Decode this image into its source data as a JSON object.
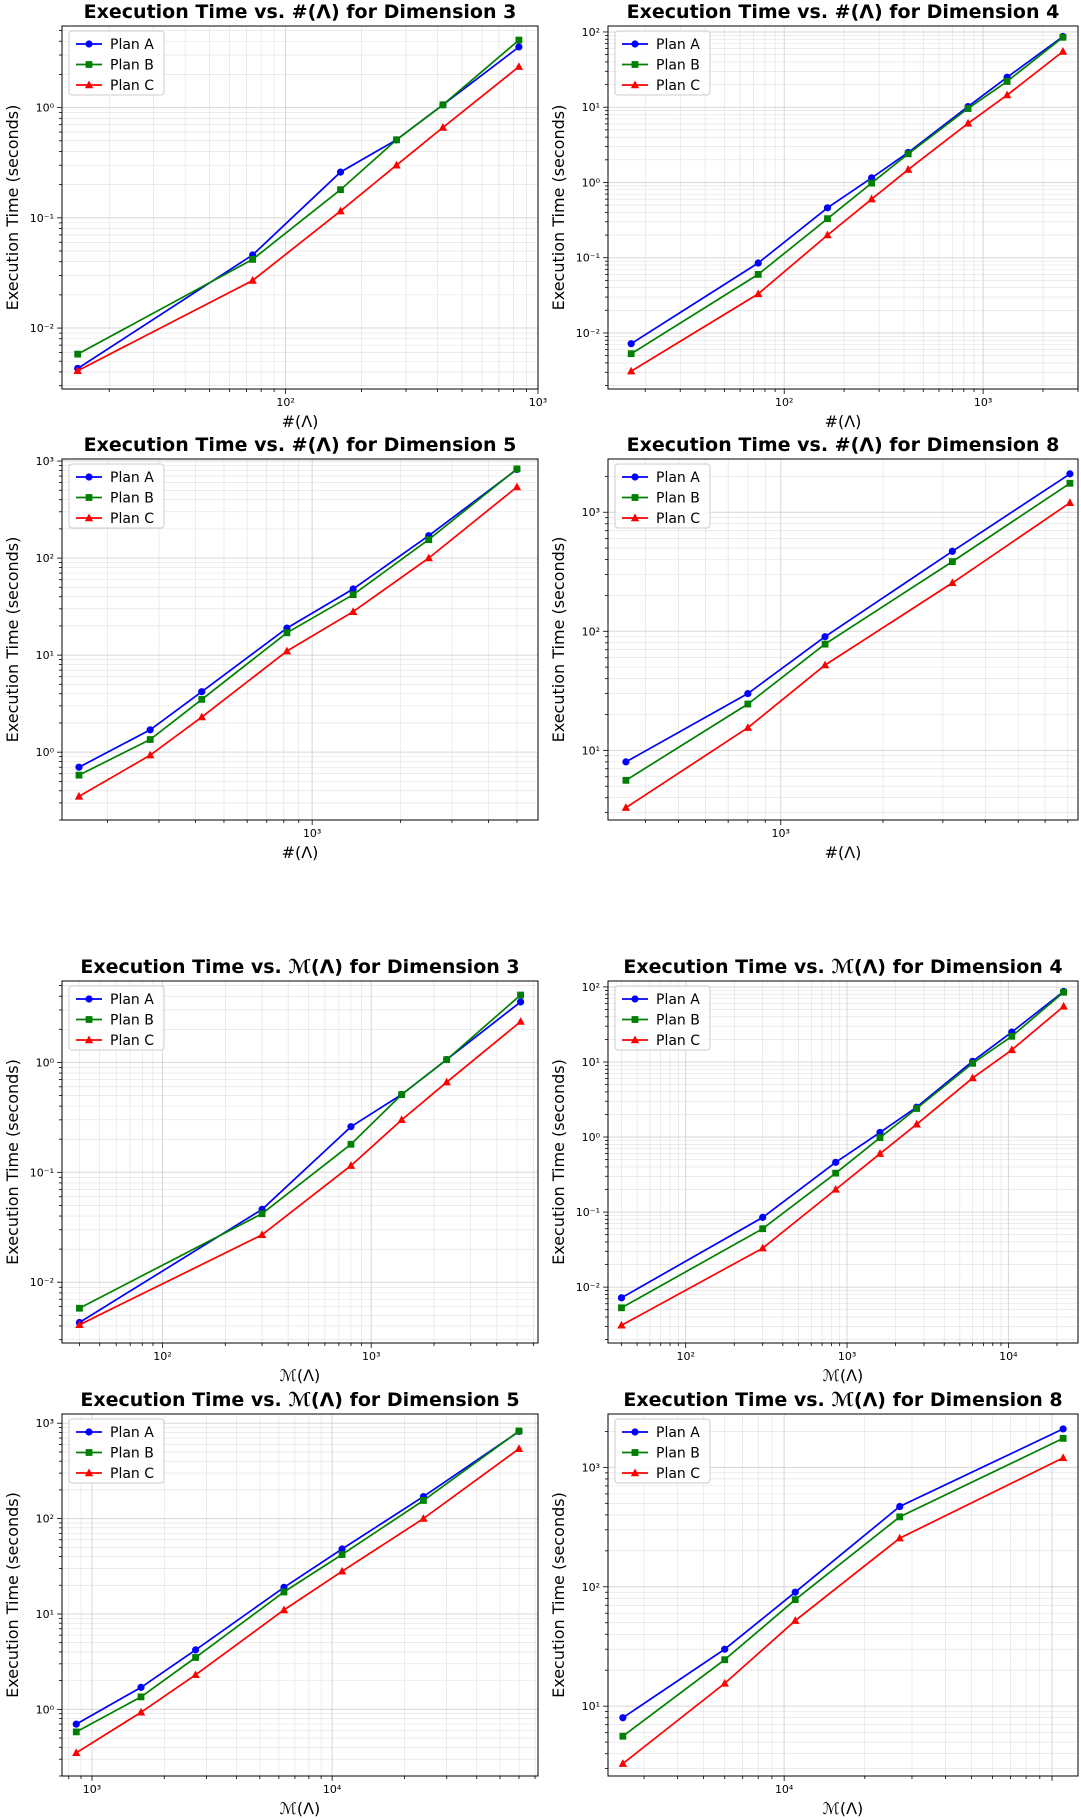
{
  "figure": {
    "colors": {
      "Plan A": "#0000ff",
      "Plan B": "#008000",
      "Plan C": "#ff0000",
      "grid": "#d3d3d3",
      "axes": "#000000"
    },
    "markers": {
      "Plan A": "circle",
      "Plan B": "square",
      "Plan C": "triangle"
    }
  },
  "chart_data": [
    {
      "type": "line",
      "title": "Execution Time vs. #(Λ) for Dimension 3",
      "xlabel": "#(Λ)",
      "ylabel": "Execution Time (seconds)",
      "xscale": "log",
      "yscale": "log",
      "xlim": [
        13,
        1000
      ],
      "ylim": [
        0.0028,
        5.5
      ],
      "xticks": [
        {
          "v": 100,
          "label": "10²"
        },
        {
          "v": 1000,
          "label": "10³"
        }
      ],
      "yticks": [
        {
          "v": 0.01,
          "label": "10⁻²"
        },
        {
          "v": 0.1,
          "label": "10⁻¹"
        },
        {
          "v": 1,
          "label": "10⁰"
        }
      ],
      "grid": true,
      "legend_position": "top-left",
      "x": [
        15,
        74,
        165,
        275,
        420,
        840
      ],
      "series": [
        {
          "name": "Plan A",
          "values": [
            0.0043,
            0.046,
            0.26,
            0.51,
            1.06,
            3.55
          ]
        },
        {
          "name": "Plan B",
          "values": [
            0.0058,
            0.042,
            0.18,
            0.51,
            1.06,
            4.1
          ]
        },
        {
          "name": "Plan C",
          "values": [
            0.0041,
            0.027,
            0.115,
            0.3,
            0.66,
            2.35
          ]
        }
      ]
    },
    {
      "type": "line",
      "title": "Execution Time vs. #(Λ) for Dimension 4",
      "xlabel": "#(Λ)",
      "ylabel": "Execution Time (seconds)",
      "xscale": "log",
      "yscale": "log",
      "xlim": [
        13,
        3000
      ],
      "ylim": [
        0.0018,
        120
      ],
      "xticks": [
        {
          "v": 100,
          "label": "10²"
        },
        {
          "v": 1000,
          "label": "10³"
        }
      ],
      "yticks": [
        {
          "v": 0.01,
          "label": "10⁻²"
        },
        {
          "v": 0.1,
          "label": "10⁻¹"
        },
        {
          "v": 1,
          "label": "10⁰"
        },
        {
          "v": 10,
          "label": "10¹"
        },
        {
          "v": 100,
          "label": "10²"
        }
      ],
      "grid": true,
      "legend_position": "top-left",
      "x": [
        17,
        74,
        165,
        275,
        420,
        840,
        1320,
        2520
      ],
      "series": [
        {
          "name": "Plan A",
          "values": [
            0.0072,
            0.085,
            0.46,
            1.15,
            2.5,
            10.2,
            25,
            87
          ]
        },
        {
          "name": "Plan B",
          "values": [
            0.0053,
            0.06,
            0.33,
            0.98,
            2.4,
            9.6,
            22,
            85
          ]
        },
        {
          "name": "Plan C",
          "values": [
            0.0031,
            0.033,
            0.2,
            0.6,
            1.48,
            6.1,
            14.5,
            55
          ]
        }
      ]
    },
    {
      "type": "line",
      "title": "Execution Time vs. #(Λ) for Dimension 5",
      "xlabel": "#(Λ)",
      "ylabel": "Execution Time (seconds)",
      "xscale": "log",
      "yscale": "log",
      "xlim": [
        140,
        5900
      ],
      "ylim": [
        0.2,
        1050
      ],
      "xticks": [
        {
          "v": 1000,
          "label": "10³"
        }
      ],
      "yticks": [
        {
          "v": 1,
          "label": "10⁰"
        },
        {
          "v": 10,
          "label": "10¹"
        },
        {
          "v": 100,
          "label": "10²"
        },
        {
          "v": 1000,
          "label": "10³"
        }
      ],
      "grid": true,
      "legend_position": "top-left",
      "x": [
        160,
        280,
        420,
        820,
        1380,
        2500,
        5000
      ],
      "series": [
        {
          "name": "Plan A",
          "values": [
            0.7,
            1.7,
            4.2,
            19,
            48,
            170,
            820
          ]
        },
        {
          "name": "Plan B",
          "values": [
            0.58,
            1.35,
            3.5,
            17,
            42,
            155,
            830
          ]
        },
        {
          "name": "Plan C",
          "values": [
            0.35,
            0.93,
            2.3,
            11,
            28,
            100,
            540
          ]
        }
      ]
    },
    {
      "type": "line",
      "title": "Execution Time vs. #(Λ) for Dimension 8",
      "xlabel": "#(Λ)",
      "ylabel": "Execution Time (seconds)",
      "xscale": "log",
      "yscale": "log",
      "xlim": [
        310,
        7500
      ],
      "ylim": [
        2.6,
        2800
      ],
      "xticks": [
        {
          "v": 1000,
          "label": "10³"
        }
      ],
      "yticks": [
        {
          "v": 10,
          "label": "10¹"
        },
        {
          "v": 100,
          "label": "10²"
        },
        {
          "v": 1000,
          "label": "10³"
        }
      ],
      "grid": true,
      "legend_position": "top-left",
      "x": [
        350,
        800,
        1350,
        3200,
        7100
      ],
      "series": [
        {
          "name": "Plan A",
          "values": [
            8,
            30,
            90,
            470,
            2100
          ]
        },
        {
          "name": "Plan B",
          "values": [
            5.6,
            24.5,
            78,
            385,
            1750
          ]
        },
        {
          "name": "Plan C",
          "values": [
            3.3,
            15.5,
            52,
            255,
            1200
          ]
        }
      ]
    },
    {
      "type": "line",
      "title": "Execution Time vs. ℳ(Λ) for Dimension 3",
      "xlabel": "ℳ(Λ)",
      "ylabel": "Execution Time (seconds)",
      "xscale": "log",
      "yscale": "log",
      "xlim": [
        33,
        6300
      ],
      "ylim": [
        0.0028,
        5.5
      ],
      "xticks": [
        {
          "v": 100,
          "label": "10²"
        },
        {
          "v": 1000,
          "label": "10³"
        }
      ],
      "yticks": [
        {
          "v": 0.01,
          "label": "10⁻²"
        },
        {
          "v": 0.1,
          "label": "10⁻¹"
        },
        {
          "v": 1,
          "label": "10⁰"
        }
      ],
      "grid": true,
      "legend_position": "top-left",
      "x": [
        40,
        300,
        800,
        1400,
        2300,
        5200
      ],
      "series": [
        {
          "name": "Plan A",
          "values": [
            0.0043,
            0.046,
            0.26,
            0.51,
            1.06,
            3.55
          ]
        },
        {
          "name": "Plan B",
          "values": [
            0.0058,
            0.042,
            0.18,
            0.51,
            1.06,
            4.1
          ]
        },
        {
          "name": "Plan C",
          "values": [
            0.0041,
            0.027,
            0.115,
            0.3,
            0.66,
            2.35
          ]
        }
      ]
    },
    {
      "type": "line",
      "title": "Execution Time vs. ℳ(Λ) for Dimension 4",
      "xlabel": "ℳ(Λ)",
      "ylabel": "Execution Time (seconds)",
      "xscale": "log",
      "yscale": "log",
      "xlim": [
        33,
        27000
      ],
      "ylim": [
        0.0018,
        120
      ],
      "xticks": [
        {
          "v": 100,
          "label": "10²"
        },
        {
          "v": 1000,
          "label": "10³"
        },
        {
          "v": 10000,
          "label": "10⁴"
        }
      ],
      "yticks": [
        {
          "v": 0.01,
          "label": "10⁻²"
        },
        {
          "v": 0.1,
          "label": "10⁻¹"
        },
        {
          "v": 1,
          "label": "10⁰"
        },
        {
          "v": 10,
          "label": "10¹"
        },
        {
          "v": 100,
          "label": "10²"
        }
      ],
      "grid": true,
      "legend_position": "top-left",
      "x": [
        40,
        300,
        850,
        1600,
        2700,
        6000,
        10500,
        22000
      ],
      "series": [
        {
          "name": "Plan A",
          "values": [
            0.0072,
            0.085,
            0.46,
            1.15,
            2.5,
            10.2,
            25,
            87
          ]
        },
        {
          "name": "Plan B",
          "values": [
            0.0053,
            0.06,
            0.33,
            0.98,
            2.4,
            9.6,
            22,
            85
          ]
        },
        {
          "name": "Plan C",
          "values": [
            0.0031,
            0.033,
            0.2,
            0.6,
            1.48,
            6.1,
            14.5,
            55
          ]
        }
      ]
    },
    {
      "type": "line",
      "title": "Execution Time vs. ℳ(Λ) for Dimension 5",
      "xlabel": "ℳ(Λ)",
      "ylabel": "Execution Time (seconds)",
      "xscale": "log",
      "yscale": "log",
      "xlim": [
        750,
        72000
      ],
      "ylim": [
        0.2,
        1250
      ],
      "xticks": [
        {
          "v": 1000,
          "label": "10³"
        },
        {
          "v": 10000,
          "label": "10⁴"
        }
      ],
      "yticks": [
        {
          "v": 1,
          "label": "10⁰"
        },
        {
          "v": 10,
          "label": "10¹"
        },
        {
          "v": 100,
          "label": "10²"
        },
        {
          "v": 1000,
          "label": "10³"
        }
      ],
      "grid": true,
      "legend_position": "top-left",
      "x": [
        860,
        1600,
        2700,
        6300,
        11000,
        24000,
        60000
      ],
      "series": [
        {
          "name": "Plan A",
          "values": [
            0.7,
            1.7,
            4.2,
            19,
            48,
            170,
            820
          ]
        },
        {
          "name": "Plan B",
          "values": [
            0.58,
            1.35,
            3.5,
            17,
            42,
            155,
            830
          ]
        },
        {
          "name": "Plan C",
          "values": [
            0.35,
            0.93,
            2.3,
            11,
            28,
            100,
            540
          ]
        }
      ]
    },
    {
      "type": "line",
      "title": "Execution Time vs. ℳ(Λ) for Dimension 8",
      "xlabel": "ℳ(Λ)",
      "ylabel": "Execution Time (seconds)",
      "xscale": "log",
      "yscale": "log",
      "xlim": [
        2200,
        125000
      ],
      "ylim": [
        2.6,
        2800
      ],
      "xticks": [
        {
          "v": 10000,
          "label": "10⁴"
        }
      ],
      "yticks": [
        {
          "v": 10,
          "label": "10¹"
        },
        {
          "v": 100,
          "label": "10²"
        },
        {
          "v": 1000,
          "label": "10³"
        }
      ],
      "grid": true,
      "legend_position": "top-left",
      "x": [
        2500,
        6000,
        11000,
        27000,
        110000
      ],
      "series": [
        {
          "name": "Plan A",
          "values": [
            8,
            30,
            90,
            470,
            2100
          ]
        },
        {
          "name": "Plan B",
          "values": [
            5.6,
            24.5,
            78,
            385,
            1750
          ]
        },
        {
          "name": "Plan C",
          "values": [
            3.3,
            15.5,
            52,
            255,
            1200
          ]
        }
      ]
    }
  ]
}
